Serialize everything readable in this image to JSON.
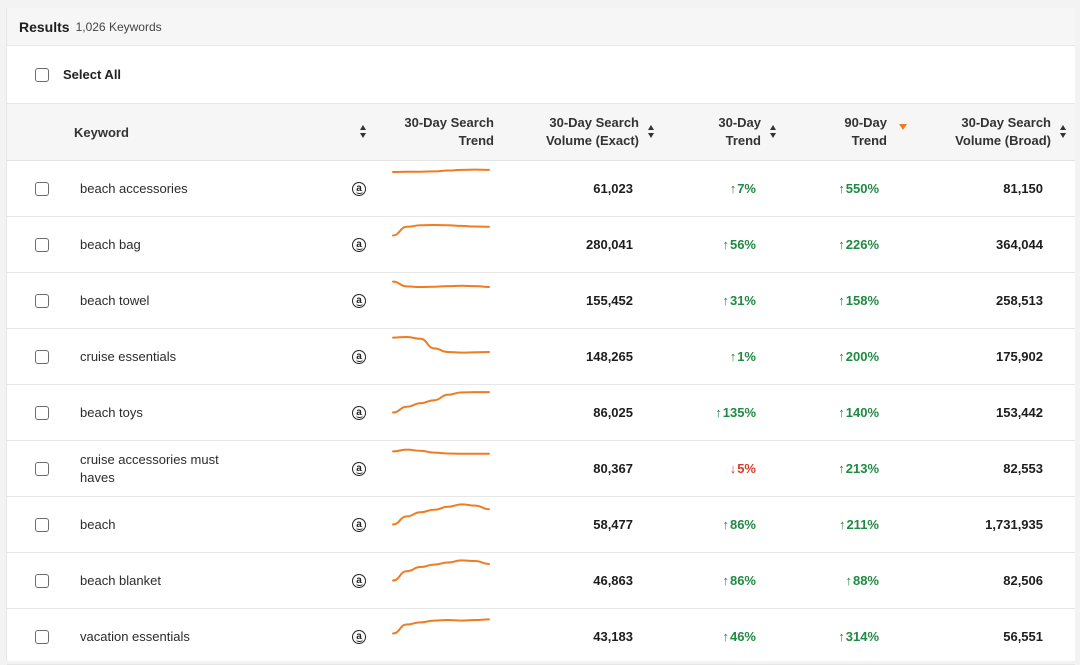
{
  "results": {
    "title": "Results",
    "count": "1,026 Keywords"
  },
  "select_all_label": "Select All",
  "columns": {
    "keyword": "Keyword",
    "trend_line1": "30-Day Search",
    "trend_line2": "Trend",
    "vol_exact_line1": "30-Day Search",
    "vol_exact_line2": "Volume (Exact)",
    "t30_line1": "30-Day",
    "t30_line2": "Trend",
    "t90_line1": "90-Day",
    "t90_line2": "Trend",
    "vol_broad_line1": "30-Day Search",
    "vol_broad_line2": "Volume (Broad)"
  },
  "colors": {
    "accent": "#f07c22",
    "up": "#1f8a43",
    "down": "#d93a2b"
  },
  "rows": [
    {
      "keyword": "beach accessories",
      "icon": "amazon-icon",
      "exact": "61,023",
      "t30": "7%",
      "t30dir": "up",
      "t90": "550%",
      "t90dir": "up",
      "broad": "81,150",
      "spark": [
        0.7,
        0.71,
        0.71,
        0.72,
        0.75,
        0.77,
        0.78,
        0.77
      ]
    },
    {
      "keyword": "beach bag",
      "icon": "amazon-icon",
      "exact": "280,041",
      "t30": "56%",
      "t30dir": "up",
      "t90": "226%",
      "t90dir": "up",
      "broad": "364,044",
      "spark": [
        0.45,
        0.74,
        0.79,
        0.8,
        0.79,
        0.77,
        0.75,
        0.74
      ]
    },
    {
      "keyword": "beach towel",
      "icon": "amazon-icon",
      "exact": "155,452",
      "t30": "31%",
      "t30dir": "up",
      "t90": "158%",
      "t90dir": "up",
      "broad": "258,513",
      "spark": [
        0.78,
        0.62,
        0.6,
        0.61,
        0.63,
        0.64,
        0.63,
        0.6
      ]
    },
    {
      "keyword": "cruise essentials",
      "icon": "amazon-icon",
      "exact": "148,265",
      "t30": "1%",
      "t30dir": "up",
      "t90": "200%",
      "t90dir": "up",
      "broad": "175,902",
      "spark": [
        0.78,
        0.8,
        0.74,
        0.42,
        0.3,
        0.28,
        0.29,
        0.3
      ]
    },
    {
      "keyword": "beach toys",
      "icon": "amazon-icon",
      "exact": "86,025",
      "t30": "135%",
      "t30dir": "up",
      "t90": "140%",
      "t90dir": "up",
      "broad": "153,442",
      "spark": [
        0.15,
        0.34,
        0.46,
        0.56,
        0.74,
        0.82,
        0.83,
        0.83
      ]
    },
    {
      "keyword": "cruise accessories must haves",
      "icon": "amazon-icon",
      "exact": "80,367",
      "t30": "5%",
      "t30dir": "down",
      "t90": "213%",
      "t90dir": "up",
      "broad": "82,553",
      "spark": [
        0.72,
        0.78,
        0.74,
        0.68,
        0.65,
        0.64,
        0.64,
        0.64
      ]
    },
    {
      "keyword": "beach",
      "icon": "amazon-icon",
      "exact": "58,477",
      "t30": "86%",
      "t30dir": "up",
      "t90": "211%",
      "t90dir": "up",
      "broad": "1,731,935",
      "spark": [
        0.15,
        0.42,
        0.56,
        0.64,
        0.74,
        0.82,
        0.78,
        0.66
      ]
    },
    {
      "keyword": "beach blanket",
      "icon": "amazon-icon",
      "exact": "46,863",
      "t30": "86%",
      "t30dir": "up",
      "t90": "88%",
      "t90dir": "up",
      "broad": "82,506",
      "spark": [
        0.15,
        0.46,
        0.6,
        0.68,
        0.75,
        0.82,
        0.8,
        0.7
      ]
    },
    {
      "keyword": "vacation essentials",
      "icon": "amazon-icon",
      "exact": "43,183",
      "t30": "46%",
      "t30dir": "up",
      "t90": "314%",
      "t90dir": "up",
      "broad": "56,551",
      "spark": [
        0.25,
        0.55,
        0.62,
        0.68,
        0.7,
        0.68,
        0.7,
        0.72
      ]
    }
  ]
}
